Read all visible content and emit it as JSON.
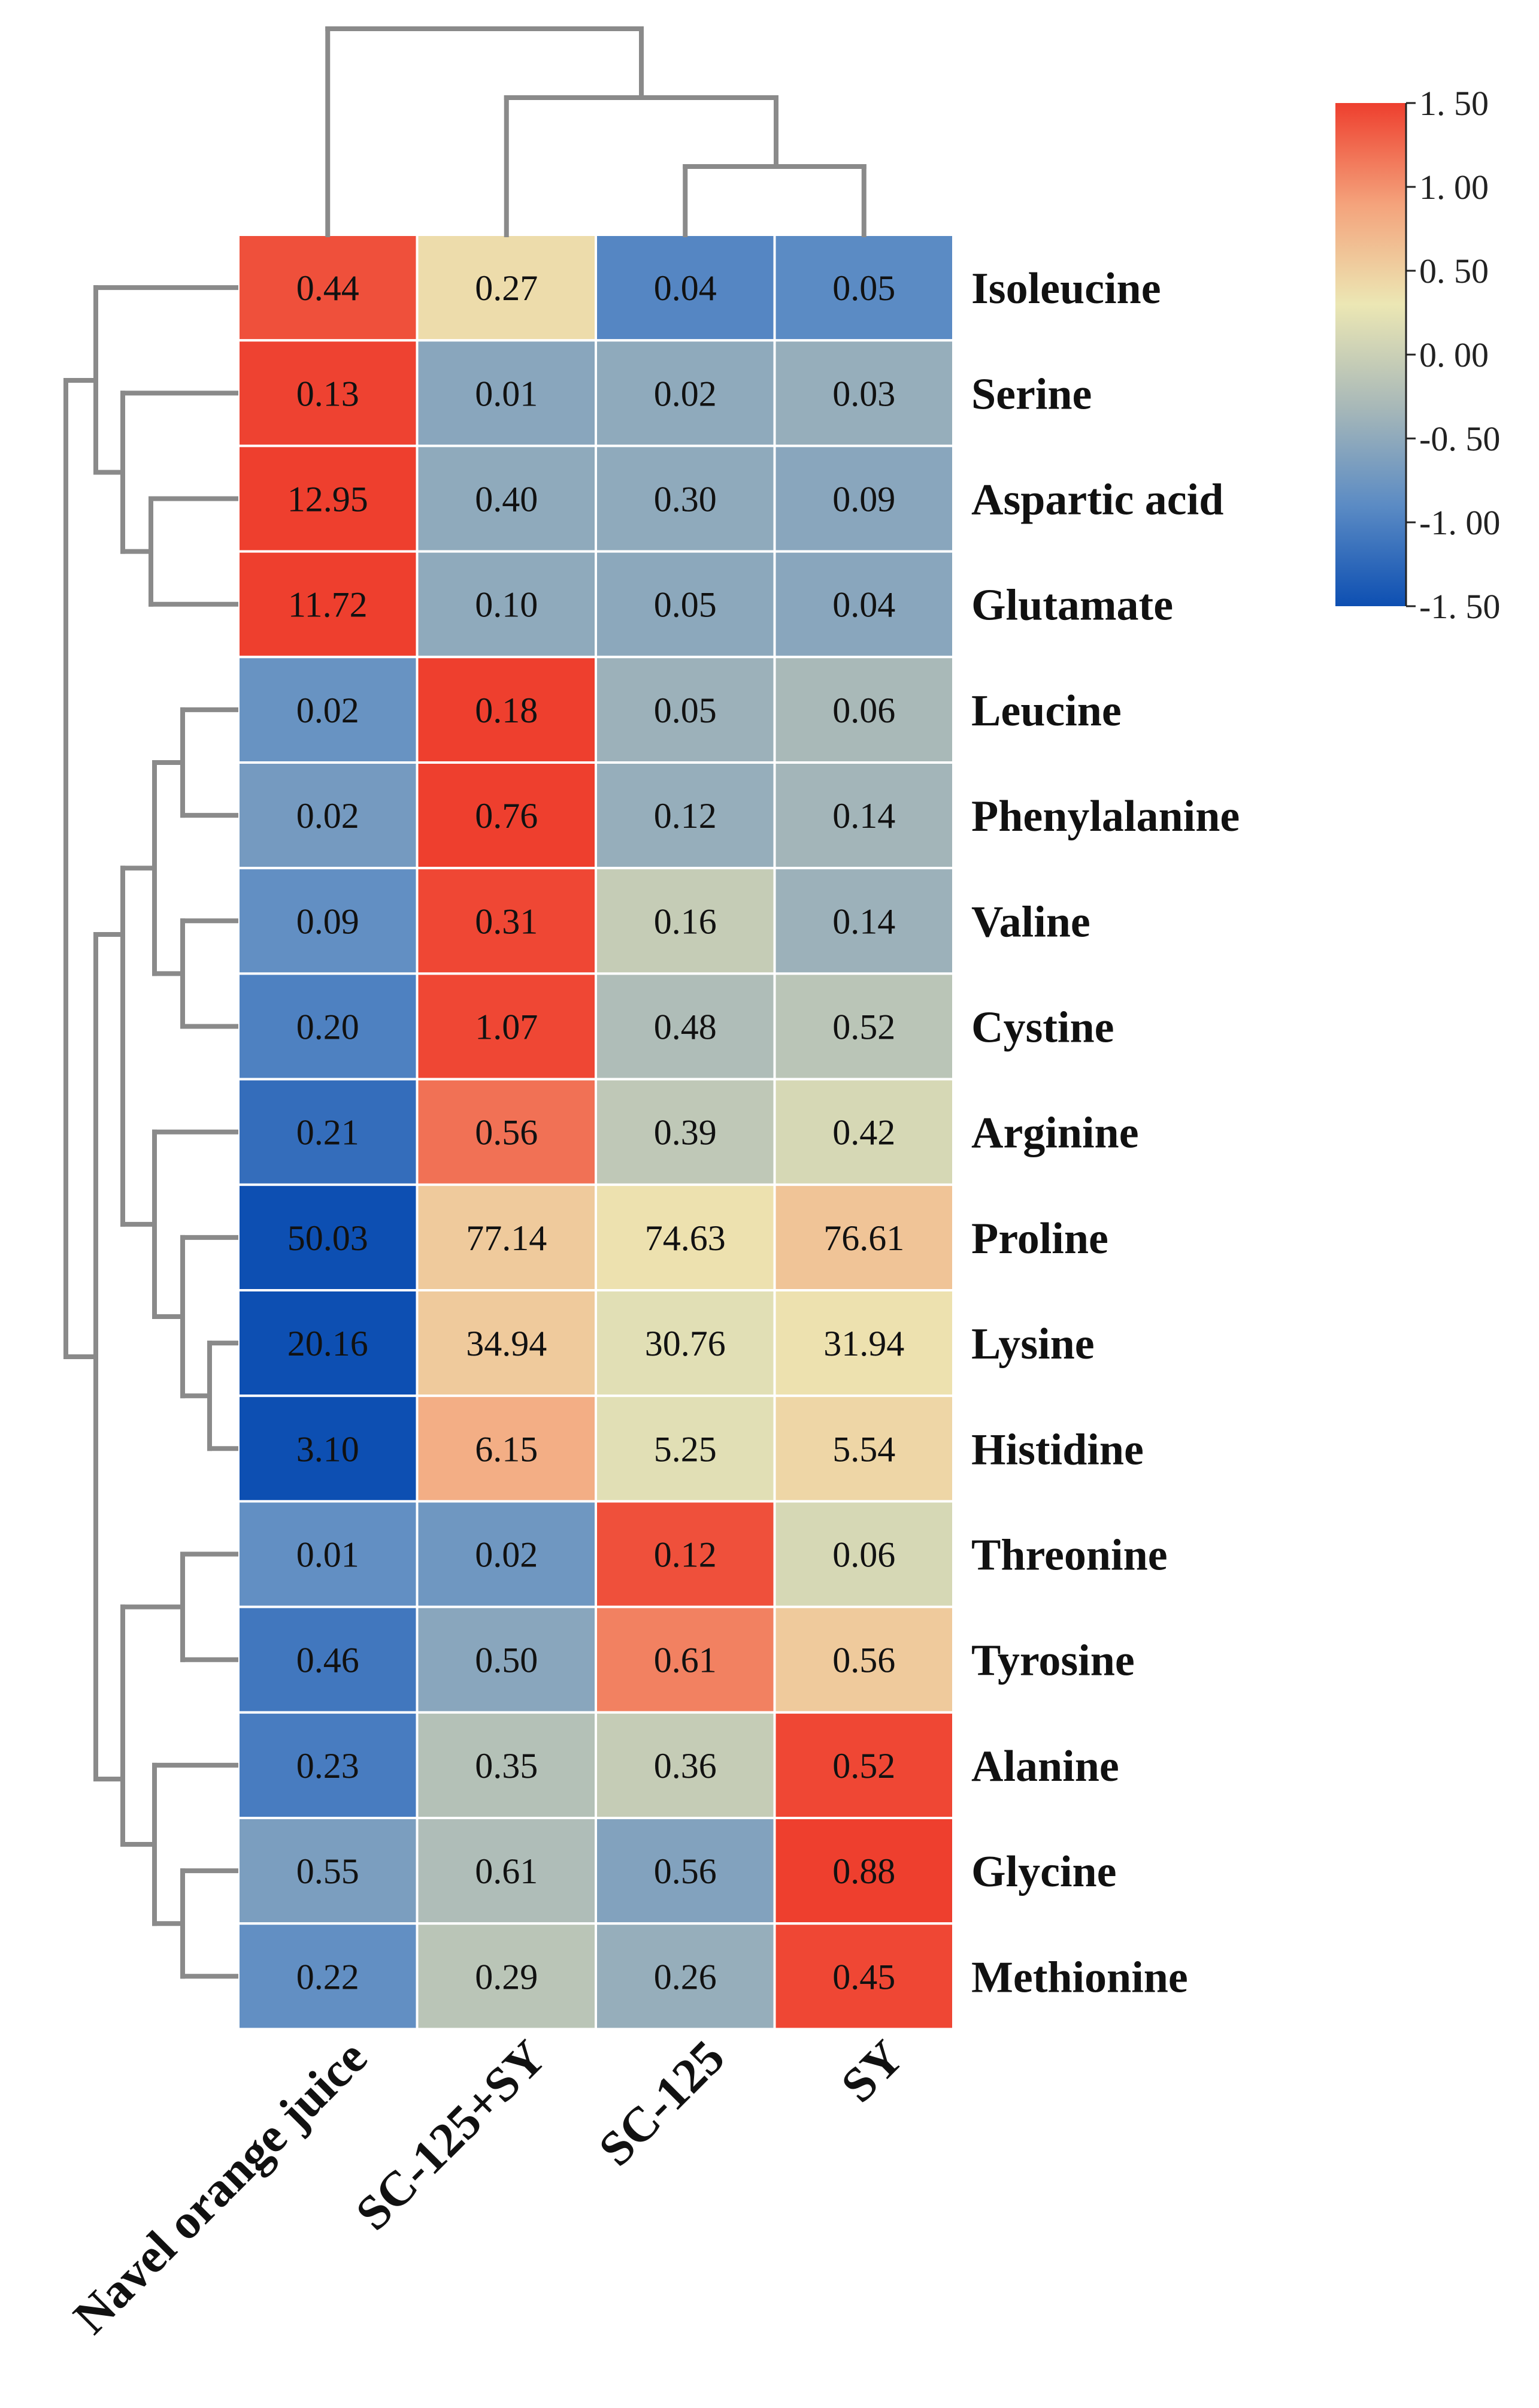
{
  "chart_data": {
    "type": "heatmap",
    "title": "",
    "columns": [
      "Navel orange juice",
      "SC-125+SY",
      "SC-125",
      "SY"
    ],
    "rows": [
      "Isoleucine",
      "Serine",
      "Aspartic acid",
      "Glutamate",
      "Leucine",
      "Phenylalanine",
      "Valine",
      "Cystine",
      "Arginine",
      "Proline",
      "Lysine",
      "Histidine",
      "Threonine",
      "Tyrosine",
      "Alanine",
      "Glycine",
      "Methionine"
    ],
    "values": [
      [
        "0.44",
        "0.27",
        "0.04",
        "0.05"
      ],
      [
        "0.13",
        "0.01",
        "0.02",
        "0.03"
      ],
      [
        "12.95",
        "0.40",
        "0.30",
        "0.09"
      ],
      [
        "11.72",
        "0.10",
        "0.05",
        "0.04"
      ],
      [
        "0.02",
        "0.18",
        "0.05",
        "0.06"
      ],
      [
        "0.02",
        "0.76",
        "0.12",
        "0.14"
      ],
      [
        "0.09",
        "0.31",
        "0.16",
        "0.14"
      ],
      [
        "0.20",
        "1.07",
        "0.48",
        "0.52"
      ],
      [
        "0.21",
        "0.56",
        "0.39",
        "0.42"
      ],
      [
        "50.03",
        "77.14",
        "74.63",
        "76.61"
      ],
      [
        "20.16",
        "34.94",
        "30.76",
        "31.94"
      ],
      [
        "3.10",
        "6.15",
        "5.25",
        "5.54"
      ],
      [
        "0.01",
        "0.02",
        "0.12",
        "0.06"
      ],
      [
        "0.46",
        "0.50",
        "0.61",
        "0.56"
      ],
      [
        "0.23",
        "0.35",
        "0.36",
        "0.52"
      ],
      [
        "0.55",
        "0.61",
        "0.56",
        "0.88"
      ],
      [
        "0.22",
        "0.29",
        "0.26",
        "0.45"
      ]
    ],
    "z_scores": [
      [
        1.4,
        0.4,
        -0.95,
        -0.9
      ],
      [
        1.48,
        -0.55,
        -0.5,
        -0.45
      ],
      [
        1.5,
        -0.5,
        -0.5,
        -0.55
      ],
      [
        1.5,
        -0.5,
        -0.52,
        -0.55
      ],
      [
        -0.8,
        1.5,
        -0.4,
        -0.3
      ],
      [
        -0.7,
        1.5,
        -0.45,
        -0.35
      ],
      [
        -0.85,
        1.45,
        -0.05,
        -0.4
      ],
      [
        -1.0,
        1.45,
        -0.25,
        -0.15
      ],
      [
        -1.2,
        1.2,
        -0.1,
        0.1
      ],
      [
        -1.5,
        0.55,
        0.35,
        0.6
      ],
      [
        -1.5,
        0.55,
        0.2,
        0.35
      ],
      [
        -1.5,
        0.8,
        0.2,
        0.45
      ],
      [
        -0.85,
        -0.75,
        1.4,
        0.1
      ],
      [
        -1.1,
        -0.55,
        1.1,
        0.55
      ],
      [
        -1.05,
        -0.2,
        -0.05,
        1.45
      ],
      [
        -0.65,
        -0.25,
        -0.6,
        1.5
      ],
      [
        -0.85,
        -0.15,
        -0.45,
        1.45
      ]
    ],
    "legend": {
      "placement": "top-right",
      "min": -1.5,
      "max": 1.5,
      "ticks": [
        "1. 50",
        "1. 00",
        "0. 50",
        "0. 00",
        "-0. 50",
        "-1. 00",
        "-1. 50"
      ],
      "colors": [
        "#0d4fb2",
        "#5b8bc4",
        "#a9b9b8",
        "#ece7b4",
        "#f4a27b",
        "#ee3f2e"
      ]
    },
    "grid": false
  }
}
